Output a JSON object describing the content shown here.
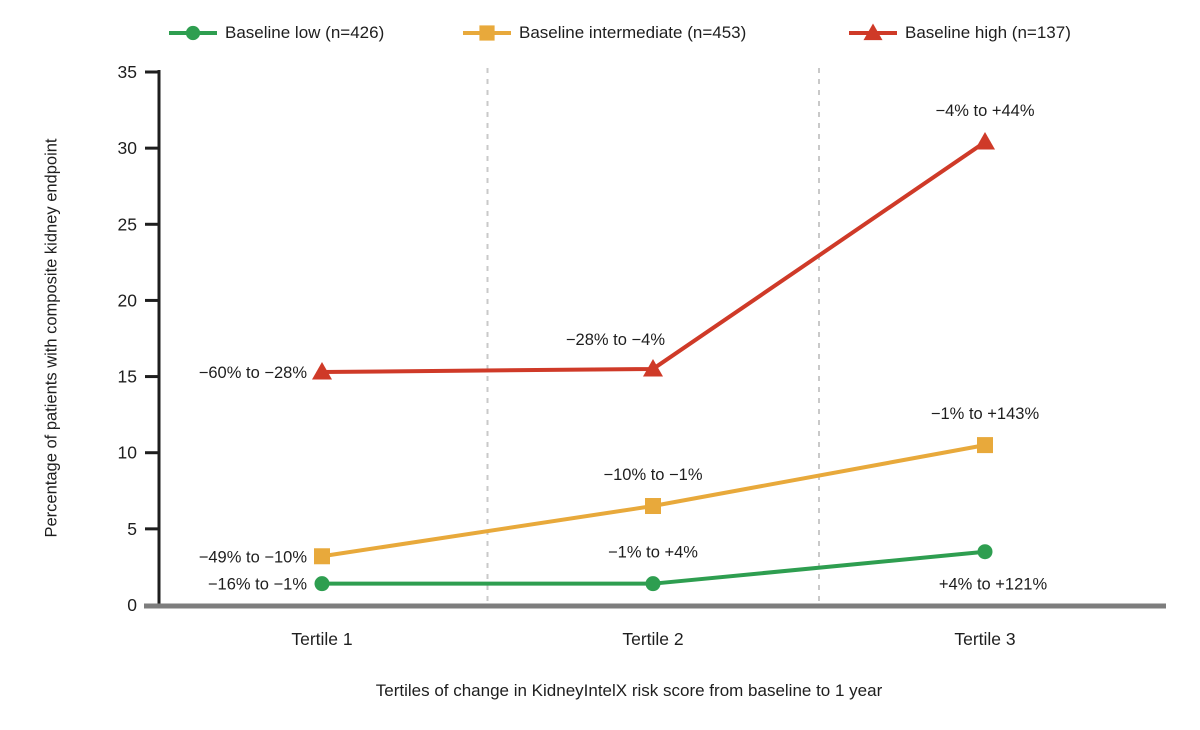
{
  "chart_data": {
    "type": "line",
    "title": "",
    "xlabel": "Tertiles of change in KidneyIntelX risk score from baseline to 1 year",
    "ylabel": "Percentage of patients with composite kidney endpoint",
    "categories": [
      "Tertile 1",
      "Tertile 2",
      "Tertile 3"
    ],
    "ylim": [
      0,
      35
    ],
    "yticks": [
      0,
      5,
      10,
      15,
      20,
      25,
      30,
      35
    ],
    "grid": "dashed vertical separators between tertile columns",
    "legend_position": "top",
    "colors": {
      "axis_text": "#1e1e1e",
      "baseline_axis": "#7d7d7d",
      "separator": "#c9c9c9"
    },
    "series": [
      {
        "name": "Baseline low (n=426)",
        "marker": "circle",
        "color": "#2e9e50",
        "values": [
          1.4,
          1.4,
          3.5
        ],
        "labels": [
          "−16% to −1%",
          "−1% to +4%",
          "+4% to +121%"
        ],
        "label_placement": [
          "left",
          "above",
          "below"
        ]
      },
      {
        "name": "Baseline intermediate (n=453)",
        "marker": "square",
        "color": "#e8a93b",
        "values": [
          3.2,
          6.5,
          10.5
        ],
        "labels": [
          "−49% to −10%",
          "−10% to −1%",
          "−1% to +143%"
        ],
        "label_placement": [
          "left",
          "above",
          "above"
        ]
      },
      {
        "name": "Baseline high (n=137)",
        "marker": "triangle",
        "color": "#cf3a28",
        "values": [
          15.3,
          15.5,
          30.4
        ],
        "labels": [
          "−60% to −28%",
          "−28% to −4%",
          "−4% to +44%"
        ],
        "label_placement": [
          "left",
          "above-left",
          "above"
        ]
      }
    ]
  }
}
